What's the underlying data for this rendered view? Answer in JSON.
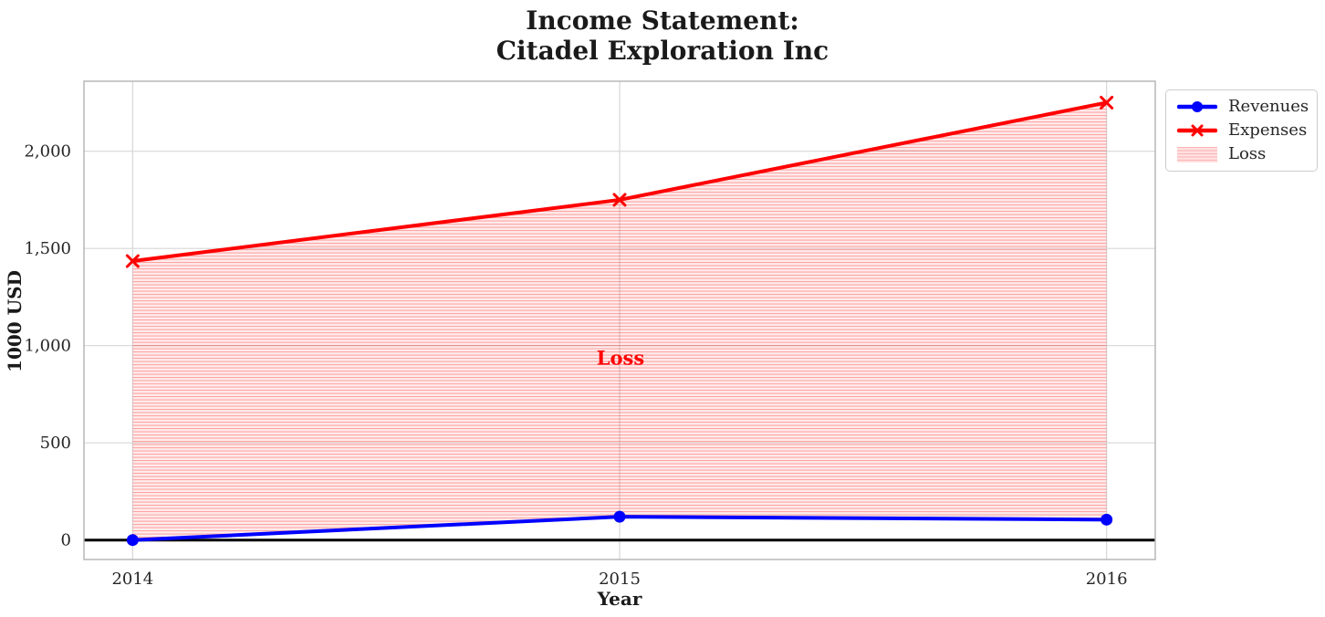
{
  "title": {
    "line1": "Income Statement:",
    "line2": "Citadel Exploration Inc"
  },
  "axes": {
    "xlabel": "Year",
    "ylabel": "1000 USD"
  },
  "legend": {
    "items": [
      "Revenues",
      "Expenses",
      "Loss"
    ]
  },
  "chart_data": {
    "type": "line",
    "title": "Income Statement: Citadel Exploration Inc",
    "xlabel": "Year",
    "ylabel": "1000 USD",
    "x": [
      2014,
      2015,
      2016
    ],
    "series": [
      {
        "name": "Revenues",
        "color": "#0000ff",
        "marker": "circle",
        "values": [
          0,
          120,
          105
        ]
      },
      {
        "name": "Expenses",
        "color": "#ff0000",
        "marker": "x",
        "values": [
          1435,
          1750,
          2250
        ]
      }
    ],
    "loss_fill": {
      "label": "Loss",
      "between": [
        "Expenses",
        "Revenues"
      ],
      "facecolor": "#ff0000",
      "face_alpha": 0.08,
      "hatch": "-",
      "hatch_alpha": 0.3
    },
    "annotation": {
      "text": "Loss",
      "x": 2015,
      "y": 940,
      "color": "#ff0000"
    },
    "xlim": [
      2013.9,
      2016.1
    ],
    "ylim": [
      -100,
      2360
    ],
    "xticks": {
      "values": [
        2014,
        2015,
        2016
      ],
      "labels": [
        "2014",
        "2015",
        "2016"
      ]
    },
    "yticks": {
      "values": [
        0,
        500,
        1000,
        1500,
        2000
      ],
      "labels": [
        "0",
        "500",
        "1,000",
        "1,500",
        "2,000"
      ]
    },
    "grid": true,
    "grid_color": "#d7d7d7",
    "spine_color": "#b7b7b7",
    "tick_color": "#262626",
    "zero_line_color": "#000000",
    "legend_position": "upper right outside"
  }
}
